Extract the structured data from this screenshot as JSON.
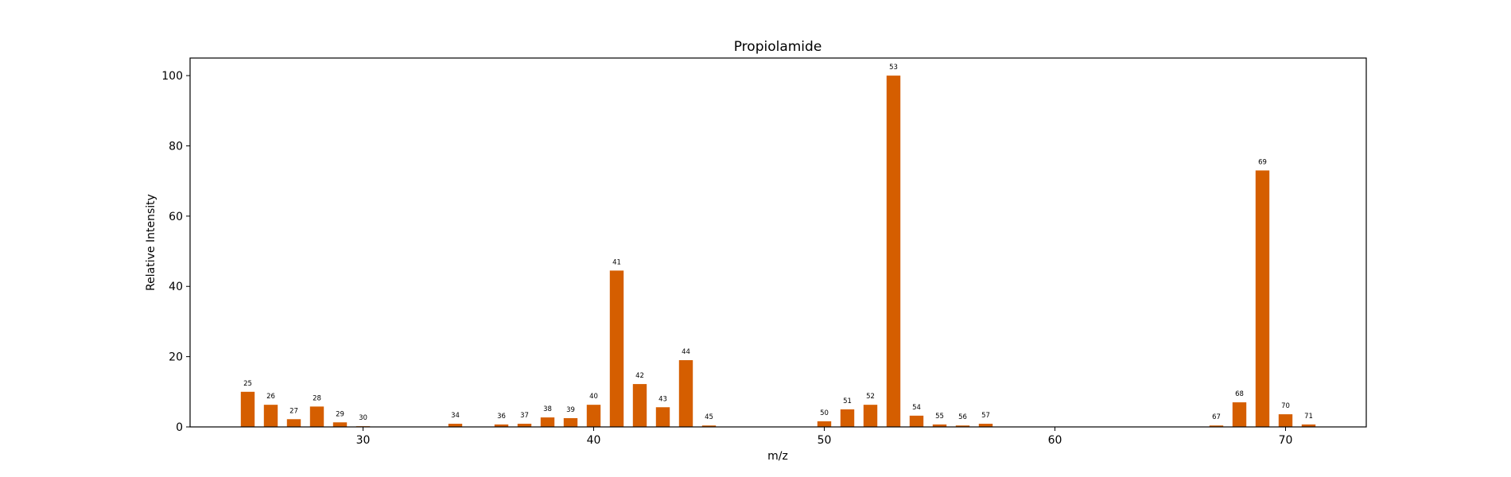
{
  "chart_data": {
    "type": "bar",
    "title": "Propiolamide",
    "xlabel": "m/z",
    "ylabel": "Relative Intensity",
    "xlim": [
      22.5,
      73.5
    ],
    "ylim": [
      0,
      105
    ],
    "xticks": [
      30,
      40,
      50,
      60,
      70
    ],
    "yticks": [
      0,
      20,
      40,
      60,
      80,
      100
    ],
    "bar_color": "#d55e00",
    "grid": false,
    "x": [
      25,
      26,
      27,
      28,
      29,
      30,
      34,
      36,
      37,
      38,
      39,
      40,
      41,
      42,
      43,
      44,
      45,
      50,
      51,
      52,
      53,
      54,
      55,
      56,
      57,
      67,
      68,
      69,
      70,
      71
    ],
    "values": [
      10.0,
      6.3,
      2.2,
      5.8,
      1.3,
      0.2,
      0.9,
      0.7,
      0.9,
      2.7,
      2.5,
      6.3,
      44.5,
      12.2,
      5.6,
      19.0,
      0.4,
      1.6,
      5.0,
      6.3,
      100.0,
      3.2,
      0.7,
      0.4,
      0.9,
      0.4,
      7.0,
      73.0,
      3.6,
      0.7
    ],
    "labels": [
      "25",
      "26",
      "27",
      "28",
      "29",
      "30",
      "34",
      "36",
      "37",
      "38",
      "39",
      "40",
      "41",
      "42",
      "43",
      "44",
      "45",
      "50",
      "51",
      "52",
      "53",
      "54",
      "55",
      "56",
      "57",
      "67",
      "68",
      "69",
      "70",
      "71"
    ]
  }
}
